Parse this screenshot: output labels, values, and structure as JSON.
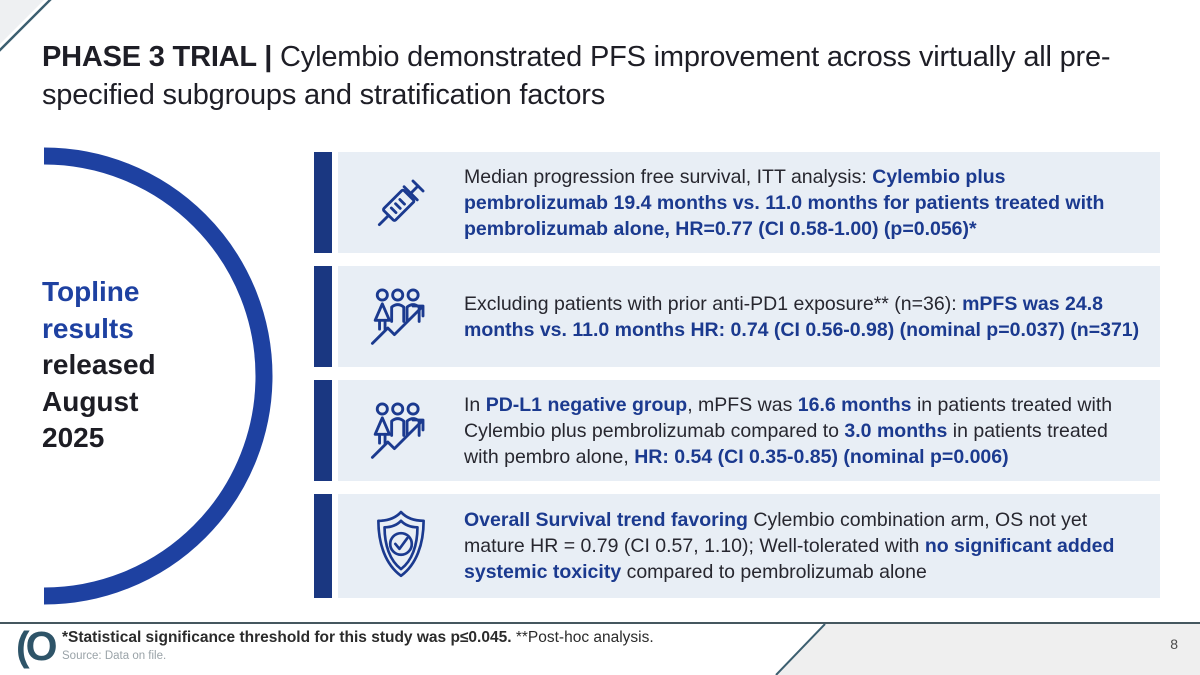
{
  "colors": {
    "navy": "#1b3a8f",
    "navy_bright": "#1e41a1",
    "bar": "#1a3781",
    "card_bg": "#e8eef5",
    "teal": "#3c5f70"
  },
  "title": {
    "bold": "PHASE 3 TRIAL | ",
    "regular": "Cylembio demonstrated PFS improvement across virtually all pre-specified subgroups and stratification factors"
  },
  "sidebar": {
    "blue_lines": [
      "Topline",
      "results"
    ],
    "dark_lines": [
      "released",
      "August",
      "2025"
    ]
  },
  "cards": [
    {
      "icon": "syringe-icon",
      "segments": [
        {
          "t": "Median progression free survival, ITT analysis: ",
          "b": false
        },
        {
          "t": "Cylembio plus pembrolizumab 19.4 months vs. 11.0 months for patients treated with pembrolizumab alone, HR=0.77 (CI 0.58-1.00) (p=0.056)*",
          "b": true
        }
      ]
    },
    {
      "icon": "people-growth-icon",
      "segments": [
        {
          "t": "Excluding patients with prior anti-PD1 exposure** (n=36): ",
          "b": false
        },
        {
          "t": "mPFS was 24.8 months vs. 11.0 months HR: 0.74 (CI 0.56-0.98) (nominal p=0.037) (n=371)",
          "b": true
        }
      ]
    },
    {
      "icon": "people-growth-icon",
      "segments": [
        {
          "t": "In ",
          "b": false
        },
        {
          "t": "PD-L1 negative group",
          "b": true
        },
        {
          "t": ", mPFS was ",
          "b": false
        },
        {
          "t": "16.6 months",
          "b": true
        },
        {
          "t": " in patients treated with Cylembio plus pembrolizumab compared to ",
          "b": false
        },
        {
          "t": "3.0 months",
          "b": true
        },
        {
          "t": " in patients treated with pembro alone, ",
          "b": false
        },
        {
          "t": "HR: 0.54 (CI 0.35-0.85) (nominal p=0.006)",
          "b": true
        }
      ]
    },
    {
      "icon": "shield-check-icon",
      "segments": [
        {
          "t": "Overall Survival trend favoring ",
          "b": true
        },
        {
          "t": " Cylembio combination arm, OS not yet mature HR = 0.79 (CI 0.57, 1.10); Well-tolerated with ",
          "b": false
        },
        {
          "t": "no significant added systemic toxicity",
          "b": true
        },
        {
          "t": " compared to pembrolizumab alone",
          "b": false
        }
      ]
    }
  ],
  "footer": {
    "logo": "(O",
    "note_bold": "*Statistical significance threshold for this study was p≤0.045.",
    "note_regular": " **Post-hoc analysis.",
    "source": "Source: Data on file.",
    "page_number": "8"
  }
}
